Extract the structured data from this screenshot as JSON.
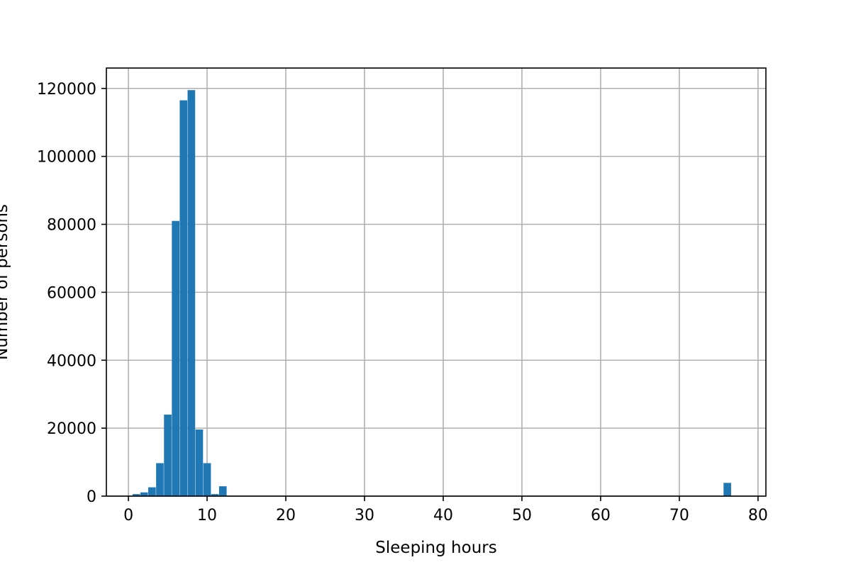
{
  "chart_data": {
    "type": "bar",
    "title": "",
    "xlabel": "Sleeping hours",
    "ylabel": "Number of persons",
    "xlim": [
      -2.8,
      81
    ],
    "ylim": [
      0,
      126000
    ],
    "xticks": [
      0,
      10,
      20,
      30,
      40,
      50,
      60,
      70,
      80
    ],
    "yticks": [
      0,
      20000,
      40000,
      60000,
      80000,
      100000,
      120000
    ],
    "grid": true,
    "bin_width": 0.96,
    "bins": [
      {
        "x": 1.0,
        "value": 600
      },
      {
        "x": 2.0,
        "value": 1100
      },
      {
        "x": 3.0,
        "value": 2600
      },
      {
        "x": 4.0,
        "value": 9700
      },
      {
        "x": 5.0,
        "value": 24000
      },
      {
        "x": 6.0,
        "value": 81000
      },
      {
        "x": 7.0,
        "value": 116500
      },
      {
        "x": 8.0,
        "value": 119500
      },
      {
        "x": 9.0,
        "value": 19600
      },
      {
        "x": 10.0,
        "value": 9700
      },
      {
        "x": 11.0,
        "value": 600
      },
      {
        "x": 12.0,
        "value": 2900
      },
      {
        "x": 76.1,
        "value": 3900
      }
    ],
    "colors": {
      "bar": "#1f77b4",
      "grid": "#b0b0b0",
      "axis": "#000000"
    }
  }
}
